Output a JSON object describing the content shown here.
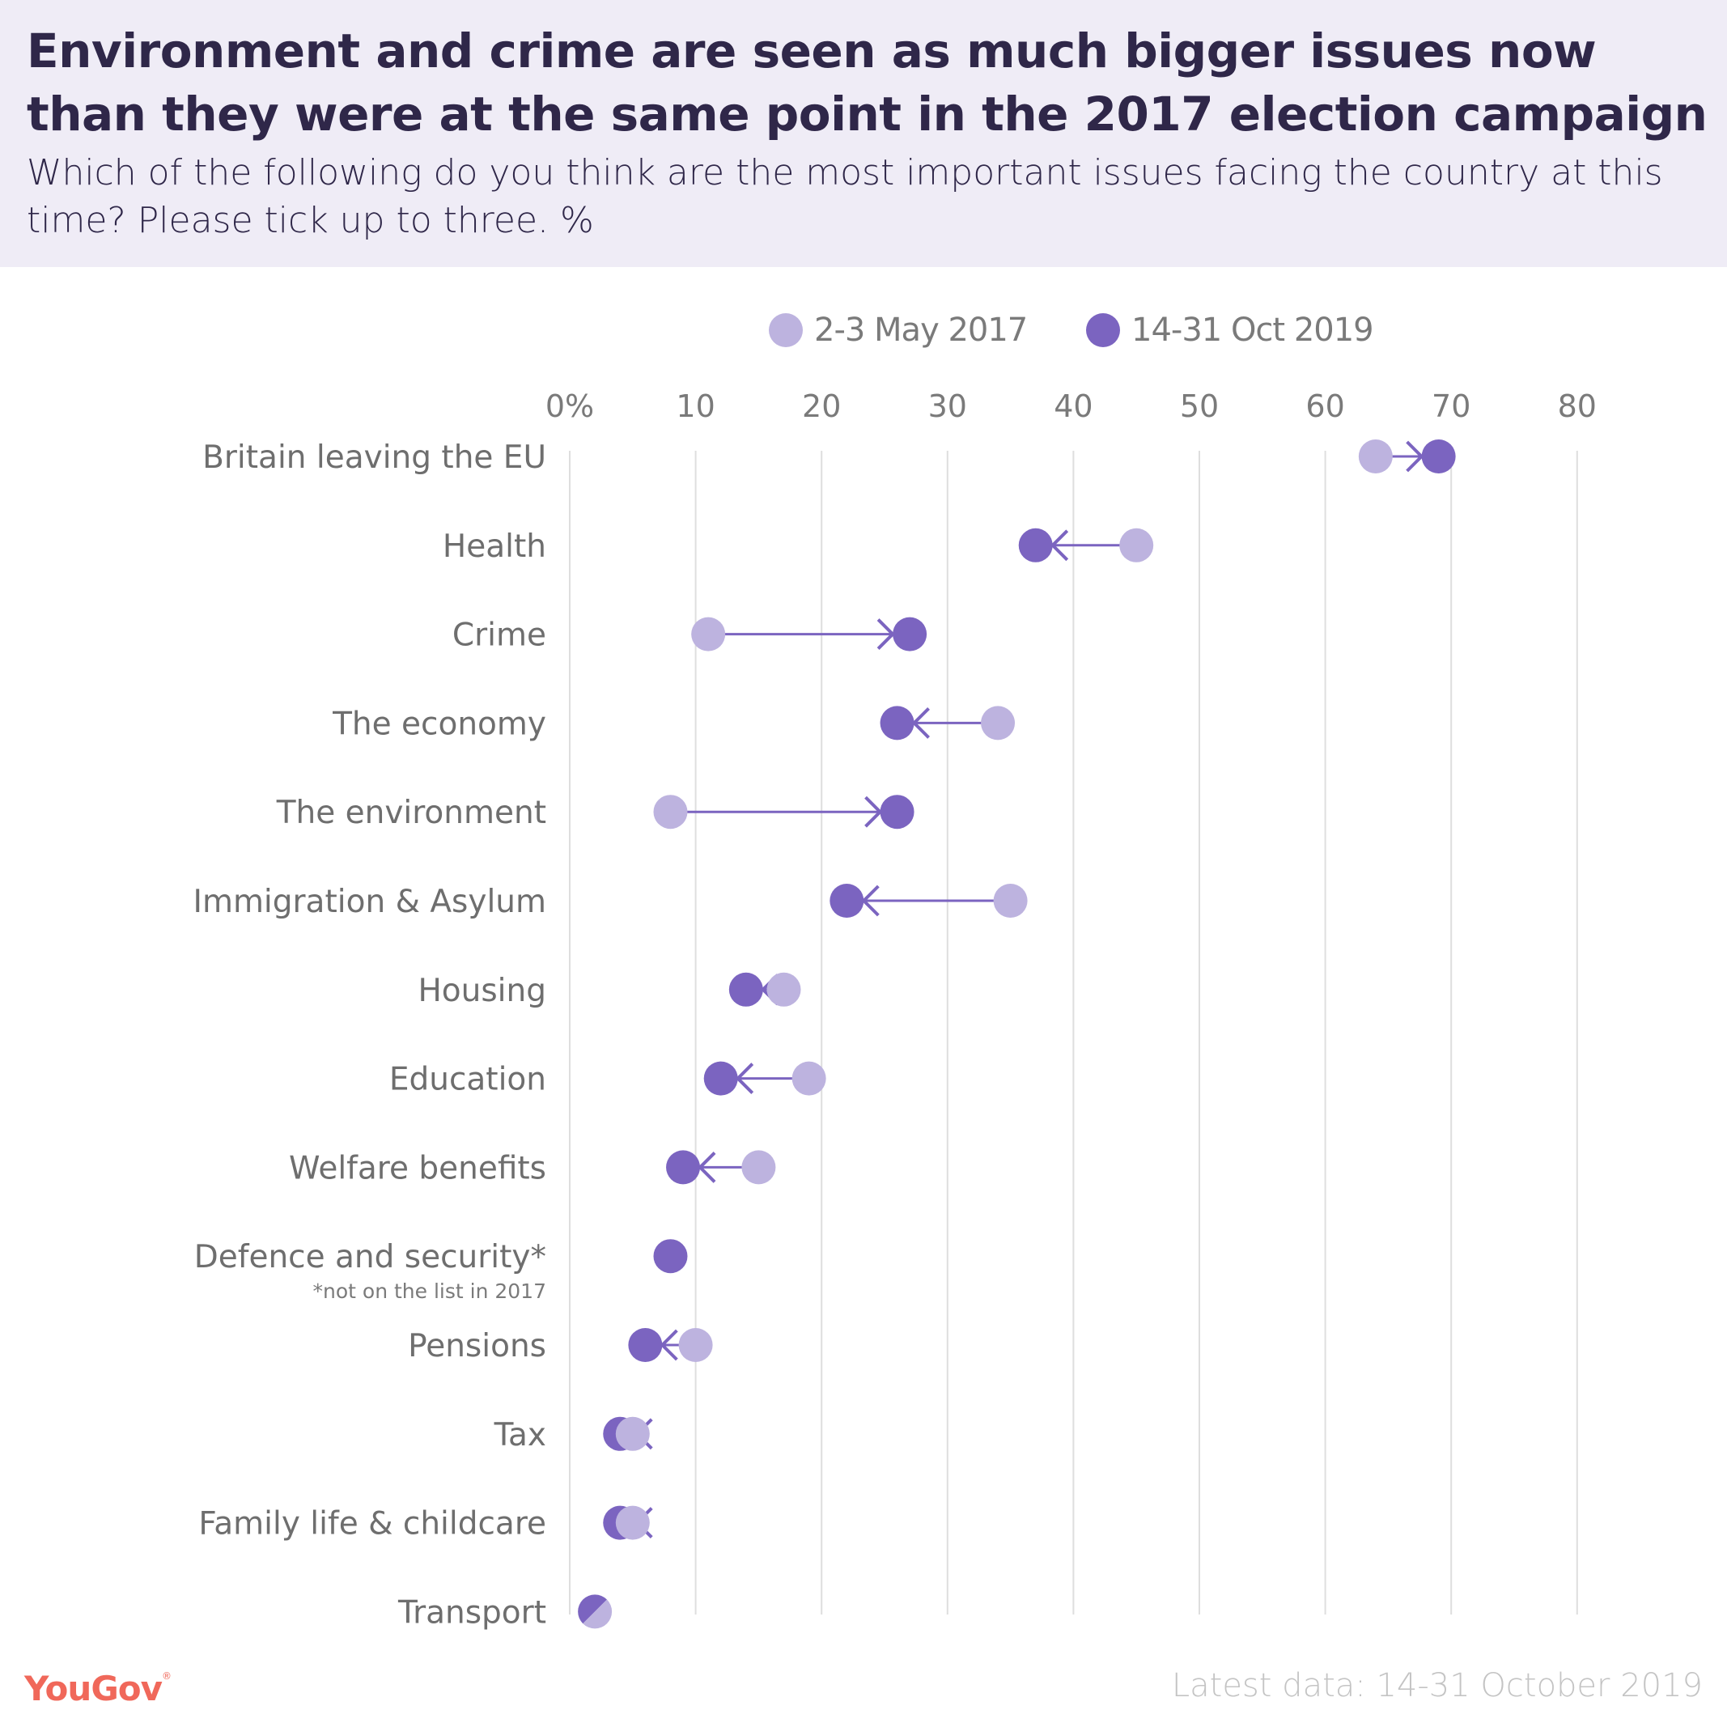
{
  "header": {
    "title": "Environment and crime are seen as much bigger issues now than they were at the same point in the 2017 election campaign",
    "subtitle": "Which of the following do you think are the most important issues facing the country at this time? Please tick up to three. %"
  },
  "legend": [
    {
      "label": "2-3 May 2017",
      "color": "#bdb3df"
    },
    {
      "label": "14-31 Oct 2019",
      "color": "#7b64c0"
    }
  ],
  "footer": {
    "logo": "YouGov",
    "logo_mark": "®",
    "note": "Latest data: 14-31 October 2019"
  },
  "colors": {
    "series_2017": "#bdb3df",
    "series_2019": "#7b64c0",
    "arrow": "#7b64c0",
    "grid": "#dedede",
    "header_bg": "#efecf6",
    "title": "#2f2749",
    "brand": "#f0685a"
  },
  "chart_data": {
    "type": "scatter",
    "subtype": "dumbbell-arrow",
    "title": "Environment and crime are seen as much bigger issues now than they were at the same point in the 2017 election campaign",
    "subtitle": "Which of the following do you think are the most important issues facing the country at this time? Please tick up to three. %",
    "xlabel": "",
    "ylabel": "",
    "xlim": [
      0,
      80
    ],
    "x_ticks": [
      0,
      10,
      20,
      30,
      40,
      50,
      60,
      70,
      80
    ],
    "x_tick_labels": [
      "0%",
      "10",
      "20",
      "30",
      "40",
      "50",
      "60",
      "70",
      "80"
    ],
    "grid": "vertical",
    "legend_position": "top-center",
    "categories": [
      "Britain leaving the EU",
      "Health",
      "Crime",
      "The economy",
      "The environment",
      "Immigration & Asylum",
      "Housing",
      "Education",
      "Welfare benefits",
      "Defence and security*",
      "Pensions",
      "Tax",
      "Family life & childcare",
      "Transport"
    ],
    "category_notes": {
      "Defence and security*": "*not on the list in 2017"
    },
    "series": [
      {
        "name": "2-3 May 2017",
        "values": [
          64,
          45,
          11,
          34,
          8,
          35,
          17,
          19,
          15,
          null,
          10,
          5,
          5,
          2
        ]
      },
      {
        "name": "14-31 Oct 2019",
        "values": [
          69,
          37,
          27,
          26,
          26,
          22,
          14,
          12,
          9,
          8,
          6,
          4,
          4,
          2
        ]
      }
    ]
  }
}
